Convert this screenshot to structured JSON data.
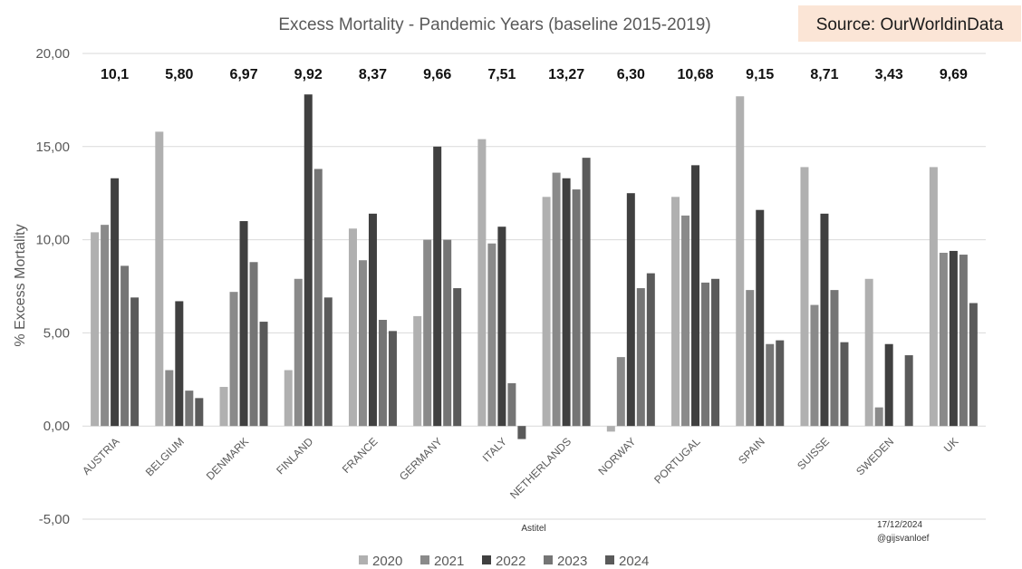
{
  "chart_data": {
    "type": "bar",
    "title": "Excess Mortality - Pandemic Years (baseline 2015-2019)",
    "source": "Source: OurWorldinData",
    "ylabel": "% Excess Mortality",
    "xlabel": "",
    "ylim": [
      -5,
      20
    ],
    "yticks": [
      "-5,00",
      "0,00",
      "5,00",
      "10,00",
      "15,00",
      "20,00"
    ],
    "ytick_values": [
      -5,
      0,
      5,
      10,
      15,
      20
    ],
    "grid": true,
    "legend_position": "bottom",
    "categories": [
      "AUSTRIA",
      "BELGIUM",
      "DENMARK",
      "FINLAND",
      "FRANCE",
      "GERMANY",
      "ITALY",
      "NETHERLANDS",
      "NORWAY",
      "PORTUGAL",
      "SPAIN",
      "SUISSE",
      "SWEDEN",
      "UK"
    ],
    "averages": [
      "10,1",
      "5,80",
      "6,97",
      "9,92",
      "8,37",
      "9,66",
      "7,51",
      "13,27",
      "6,30",
      "10,68",
      "9,15",
      "8,71",
      "3,43",
      "9,69"
    ],
    "series": [
      {
        "name": "2020",
        "color": "#b0b0b0",
        "values": [
          10.4,
          15.8,
          2.1,
          3.0,
          10.6,
          5.9,
          15.4,
          12.3,
          -0.3,
          12.3,
          17.7,
          13.9,
          7.9,
          13.9
        ]
      },
      {
        "name": "2021",
        "color": "#8a8a8a",
        "values": [
          10.8,
          3.0,
          7.2,
          7.9,
          8.9,
          10.0,
          9.8,
          13.6,
          3.7,
          11.3,
          7.3,
          6.5,
          1.0,
          9.3
        ]
      },
      {
        "name": "2022",
        "color": "#404040",
        "values": [
          13.3,
          6.7,
          11.0,
          17.8,
          11.4,
          15.0,
          10.7,
          13.3,
          12.5,
          14.0,
          11.6,
          11.4,
          4.4,
          9.4
        ]
      },
      {
        "name": "2023",
        "color": "#757575",
        "values": [
          8.6,
          1.9,
          8.8,
          13.8,
          5.7,
          10.0,
          2.3,
          12.7,
          7.4,
          7.7,
          4.4,
          7.3,
          0,
          9.2
        ]
      },
      {
        "name": "2024",
        "color": "#5a5a5a",
        "values": [
          6.9,
          1.5,
          5.6,
          6.9,
          5.1,
          7.4,
          -0.7,
          14.4,
          8.2,
          7.9,
          4.6,
          4.5,
          3.8,
          6.6
        ]
      }
    ],
    "notes": {
      "center": "Astitel",
      "date": "17/12/2024",
      "handle": "@gijsvanloef"
    },
    "colors": {
      "source_bg": "#fbe5d6",
      "grid": "#d9d9d9",
      "axis_text": "#595959"
    }
  }
}
